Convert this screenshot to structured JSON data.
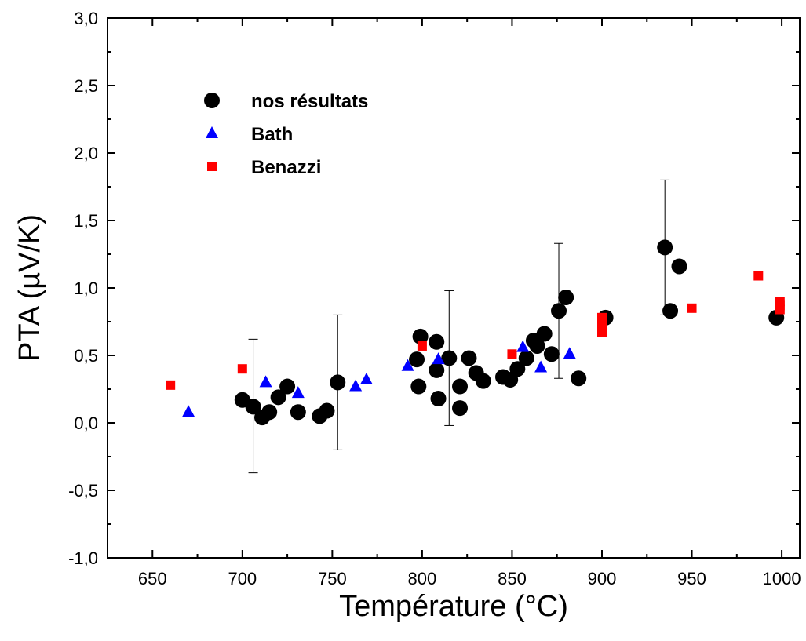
{
  "chart_data": {
    "type": "scatter",
    "title": "",
    "xlabel": "Température (°C)",
    "ylabel": "PTA (µV/K)",
    "xlim": [
      625,
      1010
    ],
    "ylim": [
      -1.0,
      3.0
    ],
    "x_ticks": [
      "650",
      "700",
      "750",
      "800",
      "850",
      "900",
      "950",
      "1000"
    ],
    "y_ticks": [
      "-1,0",
      "-0,5",
      "0,0",
      "0,5",
      "1,0",
      "1,5",
      "2,0",
      "2,5",
      "3,0"
    ],
    "grid": false,
    "legend_position": "top-left",
    "series": [
      {
        "name": "nos résultats",
        "marker": "circle",
        "color": "#000000",
        "points": [
          [
            700,
            0.17
          ],
          [
            706,
            0.12
          ],
          [
            711,
            0.04
          ],
          [
            715,
            0.08
          ],
          [
            720,
            0.19
          ],
          [
            725,
            0.27
          ],
          [
            731,
            0.08
          ],
          [
            743,
            0.05
          ],
          [
            747,
            0.09
          ],
          [
            753,
            0.3
          ],
          [
            797,
            0.47
          ],
          [
            798,
            0.27
          ],
          [
            799,
            0.64
          ],
          [
            808,
            0.39
          ],
          [
            808,
            0.6
          ],
          [
            809,
            0.18
          ],
          [
            815,
            0.48
          ],
          [
            821,
            0.27
          ],
          [
            821,
            0.11
          ],
          [
            826,
            0.48
          ],
          [
            830,
            0.37
          ],
          [
            834,
            0.31
          ],
          [
            845,
            0.34
          ],
          [
            849,
            0.32
          ],
          [
            853,
            0.4
          ],
          [
            858,
            0.48
          ],
          [
            862,
            0.61
          ],
          [
            864,
            0.57
          ],
          [
            868,
            0.66
          ],
          [
            872,
            0.51
          ],
          [
            876,
            0.83
          ],
          [
            880,
            0.93
          ],
          [
            887,
            0.33
          ],
          [
            902,
            0.78
          ],
          [
            935,
            1.3
          ],
          [
            938,
            0.83
          ],
          [
            943,
            1.16
          ],
          [
            997,
            0.78
          ]
        ]
      },
      {
        "name": "Bath",
        "marker": "triangle",
        "color": "#0000ff",
        "points": [
          [
            670,
            0.08
          ],
          [
            713,
            0.3
          ],
          [
            731,
            0.22
          ],
          [
            763,
            0.27
          ],
          [
            769,
            0.32
          ],
          [
            792,
            0.42
          ],
          [
            809,
            0.47
          ],
          [
            856,
            0.56
          ],
          [
            866,
            0.41
          ],
          [
            882,
            0.51
          ]
        ]
      },
      {
        "name": "Benazzi",
        "marker": "square",
        "color": "#ff0000",
        "points": [
          [
            660,
            0.28
          ],
          [
            700,
            0.4
          ],
          [
            800,
            0.57
          ],
          [
            850,
            0.51
          ],
          [
            900,
            0.67
          ],
          [
            900,
            0.73
          ],
          [
            900,
            0.78
          ],
          [
            950,
            0.85
          ],
          [
            987,
            1.09
          ],
          [
            999,
            0.84
          ],
          [
            999,
            0.87
          ],
          [
            999,
            0.9
          ]
        ]
      }
    ],
    "error_bars": [
      {
        "x": 706,
        "low": -0.37,
        "high": 0.62
      },
      {
        "x": 753,
        "low": -0.2,
        "high": 0.8
      },
      {
        "x": 815,
        "low": -0.02,
        "high": 0.98
      },
      {
        "x": 876,
        "low": 0.33,
        "high": 1.33
      },
      {
        "x": 935,
        "low": 0.8,
        "high": 1.8
      }
    ]
  }
}
